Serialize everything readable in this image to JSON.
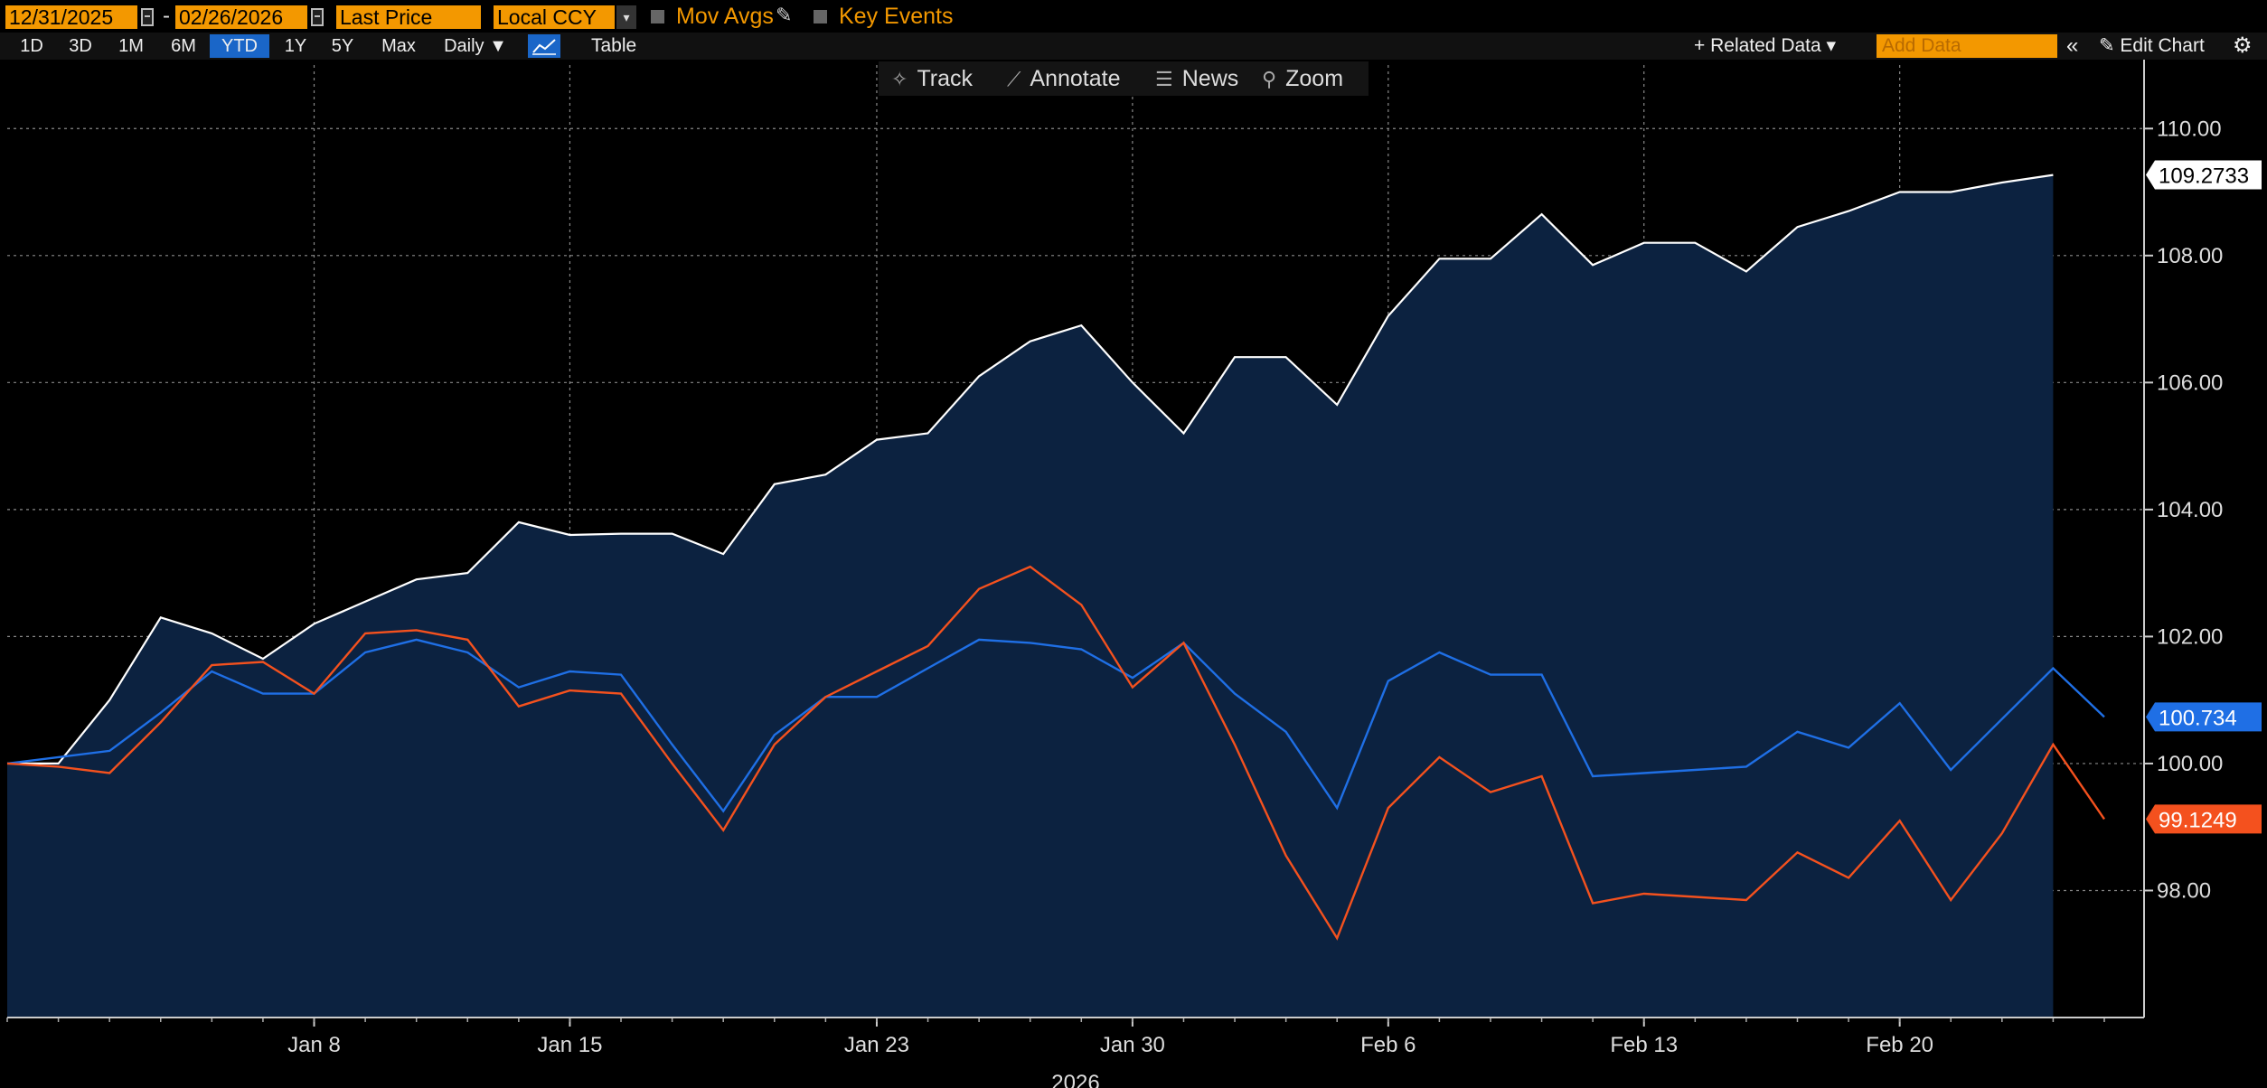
{
  "toolbar": {
    "start_date": "12/31/2025",
    "date_separator": "-",
    "end_date": "02/26/2026",
    "field": "Last Price",
    "currency": "Local CCY",
    "currency_dropdown": "▾",
    "mov_avgs": "Mov Avgs",
    "key_events": "Key Events",
    "pencil_icon": "✎"
  },
  "ranges": [
    "1D",
    "3D",
    "1M",
    "6M",
    "YTD",
    "1Y",
    "5Y",
    "Max"
  ],
  "selected_range": "YTD",
  "frequency": "Daily ▼",
  "table_label": "Table",
  "related_data": "+ Related Data ▾",
  "add_data_placeholder": "Add Data",
  "collapse_icon": "«",
  "edit_chart": "✎ Edit Chart",
  "settings_icon": "⚙",
  "chart_tools": [
    {
      "icon": "✧",
      "label": "Track"
    },
    {
      "icon": "⟋",
      "label": "Annotate"
    },
    {
      "icon": "☰",
      "label": "News"
    },
    {
      "icon": "⚲",
      "label": "Zoom"
    }
  ],
  "chart_data": {
    "type": "line",
    "x": [
      "2025-12-31",
      "2026-01-01",
      "2026-01-02",
      "2026-01-05",
      "2026-01-06",
      "2026-01-07",
      "2026-01-08",
      "2026-01-09",
      "2026-01-12",
      "2026-01-13",
      "2026-01-14",
      "2026-01-15",
      "2026-01-16",
      "2026-01-19",
      "2026-01-20",
      "2026-01-21",
      "2026-01-22",
      "2026-01-23",
      "2026-01-26",
      "2026-01-27",
      "2026-01-28",
      "2026-01-29",
      "2026-01-30",
      "2026-02-02",
      "2026-02-03",
      "2026-02-04",
      "2026-02-05",
      "2026-02-06",
      "2026-02-09",
      "2026-02-10",
      "2026-02-11",
      "2026-02-12",
      "2026-02-13",
      "2026-02-16",
      "2026-02-17",
      "2026-02-18",
      "2026-02-19",
      "2026-02-20",
      "2026-02-23",
      "2026-02-24",
      "2026-02-25",
      "2026-02-26"
    ],
    "x_tick_labels": [
      {
        "date": "2026-01-08",
        "label": "Jan 8"
      },
      {
        "date": "2026-01-15",
        "label": "Jan 15"
      },
      {
        "date": "2026-01-23",
        "label": "Jan 23"
      },
      {
        "date": "2026-01-30",
        "label": "Jan 30"
      },
      {
        "date": "2026-02-06",
        "label": "Feb 6"
      },
      {
        "date": "2026-02-13",
        "label": "Feb 13"
      },
      {
        "date": "2026-02-20",
        "label": "Feb 20"
      }
    ],
    "xlabel": "2026",
    "y_ticks": [
      98,
      100,
      102,
      104,
      106,
      108,
      110
    ],
    "y_tick_labels": [
      "98.00",
      "100.00",
      "102.00",
      "104.00",
      "106.00",
      "108.00",
      "110.00"
    ],
    "ylim": [
      96.0,
      111.0
    ],
    "y_axis_side": "right",
    "grid": true,
    "series": [
      {
        "style": "area",
        "color": "#ffffff",
        "fill": "#0c2240",
        "last_label": "109.2733",
        "values": [
          100.0,
          100.0,
          101.0,
          102.3,
          102.05,
          101.65,
          102.2,
          102.55,
          102.9,
          103.0,
          103.8,
          103.6,
          103.62,
          103.62,
          103.3,
          104.4,
          104.55,
          105.1,
          105.2,
          106.1,
          106.65,
          106.9,
          106.0,
          105.2,
          106.4,
          106.4,
          105.65,
          107.05,
          107.95,
          107.95,
          108.65,
          107.85,
          108.2,
          108.2,
          107.75,
          108.45,
          108.7,
          109.0,
          109.0,
          109.15,
          109.27,
          null
        ]
      },
      {
        "style": "line",
        "color": "#1f6fe5",
        "last_label": "100.734",
        "values": [
          100.0,
          100.1,
          100.2,
          100.8,
          101.45,
          101.1,
          101.1,
          101.75,
          101.95,
          101.75,
          101.2,
          101.45,
          101.4,
          100.3,
          99.25,
          100.45,
          101.05,
          101.05,
          101.5,
          101.95,
          101.9,
          101.8,
          101.35,
          101.9,
          101.1,
          100.5,
          99.3,
          101.3,
          101.75,
          101.4,
          101.4,
          99.8,
          99.85,
          99.9,
          99.95,
          100.5,
          100.25,
          100.95,
          99.9,
          100.7,
          101.5,
          100.734
        ]
      },
      {
        "style": "line",
        "color": "#f4511e",
        "last_label": "99.1249",
        "values": [
          100.0,
          99.95,
          99.85,
          100.65,
          101.55,
          101.6,
          101.1,
          102.05,
          102.1,
          101.95,
          100.9,
          101.15,
          101.1,
          100.0,
          98.95,
          100.3,
          101.05,
          101.45,
          101.85,
          102.75,
          103.1,
          102.5,
          101.2,
          101.9,
          100.3,
          98.55,
          97.25,
          99.3,
          100.1,
          99.55,
          99.8,
          97.8,
          97.95,
          97.9,
          97.85,
          98.6,
          98.2,
          99.1,
          97.85,
          98.9,
          100.3,
          99.1249
        ]
      }
    ]
  }
}
